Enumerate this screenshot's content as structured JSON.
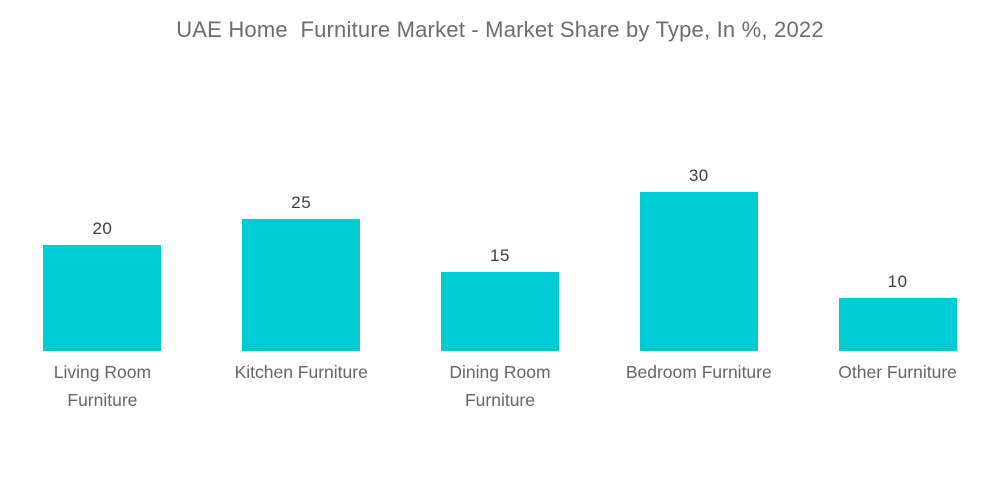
{
  "title": "UAE Home  Furniture Market - Market Share by Type, In %, 2022",
  "colors": {
    "background": "#FFFFFF",
    "bar": "#00CCD4",
    "title_text": "#6D6D6D",
    "value_text": "#3F3F3F",
    "category_text": "#666666"
  },
  "chart_data": {
    "type": "bar",
    "title": "UAE Home  Furniture Market - Market Share by Type, In %, 2022",
    "categories": [
      "Living Room Furniture",
      "Kitchen Furniture",
      "Dining Room Furniture",
      "Bedroom Furniture",
      "Other Furniture"
    ],
    "values": [
      20,
      25,
      15,
      30,
      10
    ],
    "value_labels": [
      "20",
      "25",
      "15",
      "30",
      "10"
    ],
    "unit": "%",
    "xlabel": "",
    "ylabel": "",
    "ylim": [
      0,
      30
    ],
    "grid": false,
    "legend": false,
    "axes_visible": false,
    "bar_color": "#00CCD4"
  }
}
